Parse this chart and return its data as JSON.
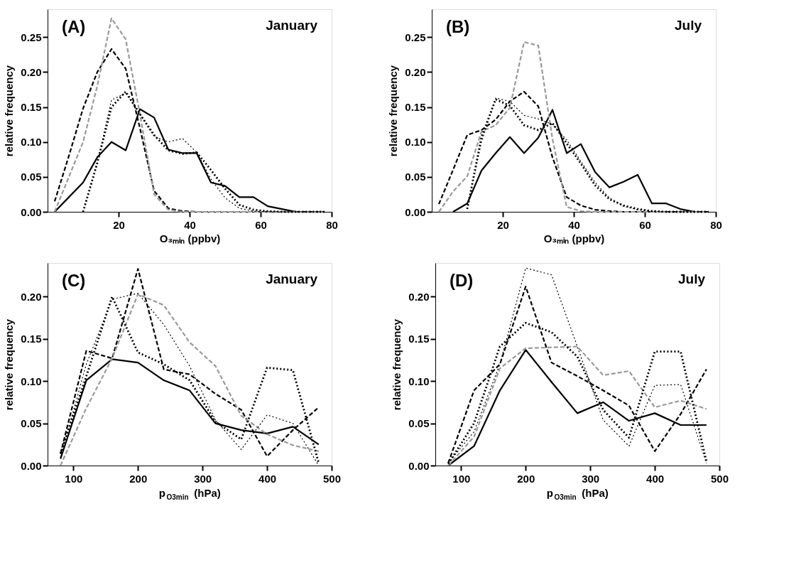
{
  "chart_data": [
    {
      "type": "line",
      "xlabel": "O₃ₘᵢₙ (ppbv)",
      "ylabel": "relative frequency",
      "annotations": [
        "(A)",
        "January"
      ],
      "x": [
        2,
        6,
        10,
        14,
        18,
        22,
        26,
        30,
        34,
        38,
        42,
        46,
        50,
        54,
        58,
        62,
        66,
        70,
        74,
        78
      ],
      "xlim": [
        0,
        80
      ],
      "xticks": [
        20,
        40,
        60,
        80
      ],
      "ylim": [
        0,
        0.29
      ],
      "yticks": [
        {
          "value": 0,
          "label": "0.00"
        },
        {
          "value": 0.05,
          "label": "0.05"
        },
        {
          "value": 0.1,
          "label": "0.10"
        },
        {
          "value": 0.15,
          "label": "0.15"
        },
        {
          "value": 0.2,
          "label": "0.20"
        },
        {
          "value": 0.25,
          "label": "0.25"
        }
      ],
      "grid": false,
      "marker": "none",
      "series": [
        {
          "color": "#000000",
          "line_style": "solid",
          "values": [
            0,
            0.021,
            0.042,
            0.078,
            0.1,
            0.088,
            0.147,
            0.135,
            0.089,
            0.084,
            0.084,
            0.042,
            0.037,
            0.021,
            0.021,
            0.008,
            0.004,
            0,
            0,
            0
          ]
        },
        {
          "color": "#000000",
          "line_style": "dashed",
          "values": [
            0.015,
            0.08,
            0.148,
            0.2,
            0.233,
            0.205,
            0.12,
            0.03,
            0.005,
            0.001,
            0,
            0,
            0,
            0,
            0,
            0,
            0,
            0,
            0,
            0
          ]
        },
        {
          "color": "#999999",
          "line_style": "dashed",
          "values": [
            0,
            0.05,
            0.1,
            0.18,
            0.277,
            0.247,
            0.14,
            0.025,
            0.003,
            0,
            0,
            0,
            0,
            0,
            0,
            0,
            0,
            0,
            0,
            0
          ]
        },
        {
          "color": "#000000",
          "line_style": "dotted",
          "values": [
            null,
            null,
            0,
            0.07,
            0.15,
            0.172,
            0.14,
            0.11,
            0.088,
            0.083,
            0.085,
            0.06,
            0.033,
            0.01,
            0.003,
            0.001,
            0,
            0,
            0,
            0
          ]
        },
        {
          "color": "#000000",
          "line_style": "dotted",
          "values": [
            null,
            null,
            0,
            0.07,
            0.16,
            0.17,
            0.14,
            0.108,
            0.1,
            0.105,
            0.085,
            0.047,
            0.02,
            0.005,
            0.001,
            0,
            0,
            0,
            0,
            0
          ]
        }
      ]
    },
    {
      "type": "line",
      "xlabel": "O₃ₘᵢₙ (ppbv)",
      "ylabel": "relative frequency",
      "annotations": [
        "(B)",
        "July"
      ],
      "x": [
        2,
        6,
        10,
        14,
        18,
        22,
        26,
        30,
        34,
        38,
        42,
        46,
        50,
        54,
        58,
        62,
        66,
        70,
        74,
        78
      ],
      "xlim": [
        0,
        80
      ],
      "xticks": [
        20,
        40,
        60,
        80
      ],
      "ylim": [
        0,
        0.29
      ],
      "yticks": [
        {
          "value": 0,
          "label": "0.00"
        },
        {
          "value": 0.05,
          "label": "0.05"
        },
        {
          "value": 0.1,
          "label": "0.10"
        },
        {
          "value": 0.15,
          "label": "0.15"
        },
        {
          "value": 0.2,
          "label": "0.20"
        },
        {
          "value": 0.25,
          "label": "0.25"
        }
      ],
      "grid": false,
      "marker": "none",
      "series": [
        {
          "color": "#000000",
          "line_style": "solid",
          "values": [
            null,
            0,
            0.012,
            0.059,
            0.084,
            0.107,
            0.084,
            0.106,
            0.146,
            0.084,
            0.097,
            0.057,
            0.035,
            0.043,
            0.053,
            0.012,
            0.012,
            0.004,
            0,
            0
          ]
        },
        {
          "color": "#000000",
          "line_style": "dashed",
          "values": [
            0.011,
            0.06,
            0.11,
            0.117,
            0.132,
            0.158,
            0.172,
            0.151,
            0.078,
            0.021,
            0.009,
            0.003,
            0.001,
            0,
            0,
            0,
            0,
            0,
            0,
            0
          ]
        },
        {
          "color": "#999999",
          "line_style": "dashed",
          "values": [
            0,
            0.029,
            0.051,
            0.115,
            0.124,
            0.149,
            0.243,
            0.238,
            0.104,
            0.007,
            0.001,
            0,
            0,
            0,
            0,
            0,
            0,
            0,
            0,
            0
          ]
        },
        {
          "color": "#000000",
          "line_style": "dotted",
          "values": [
            null,
            null,
            0.004,
            0.107,
            0.161,
            0.152,
            0.124,
            0.117,
            0.127,
            0.098,
            0.069,
            0.038,
            0.018,
            0.009,
            0.004,
            0.001,
            0,
            0,
            0,
            0
          ]
        },
        {
          "color": "#000000",
          "line_style": "dotted",
          "values": [
            null,
            null,
            0.004,
            0.1,
            0.163,
            0.158,
            0.138,
            0.133,
            0.125,
            0.103,
            0.072,
            0.042,
            0.02,
            0.008,
            0.003,
            0.001,
            0,
            0,
            0,
            0
          ]
        }
      ]
    },
    {
      "type": "line",
      "xlabel": "p$_{O3min}$ (hPa)",
      "ylabel": "relative frequency",
      "annotations": [
        "(C)",
        "January"
      ],
      "x": [
        80,
        120,
        160,
        200,
        240,
        280,
        320,
        360,
        400,
        440,
        480
      ],
      "xlim": [
        60,
        500
      ],
      "xticks": [
        100,
        200,
        300,
        400,
        500
      ],
      "ylim": [
        0,
        0.24
      ],
      "yticks": [
        {
          "value": 0,
          "label": "0.00"
        },
        {
          "value": 0.05,
          "label": "0.05"
        },
        {
          "value": 0.1,
          "label": "0.10"
        },
        {
          "value": 0.15,
          "label": "0.15"
        },
        {
          "value": 0.2,
          "label": "0.20"
        }
      ],
      "grid": false,
      "marker": "none",
      "series": [
        {
          "color": "#000000",
          "line_style": "solid",
          "values": [
            0.008,
            0.101,
            0.126,
            0.122,
            0.101,
            0.089,
            0.05,
            0.042,
            0.038,
            0.046,
            0.025
          ]
        },
        {
          "color": "#000000",
          "line_style": "dashed",
          "values": [
            0.014,
            0.136,
            0.127,
            0.233,
            0.114,
            0.108,
            0.085,
            0.066,
            0.011,
            0.042,
            0.069
          ]
        },
        {
          "color": "#999999",
          "line_style": "dashed",
          "values": [
            0,
            0.068,
            0.127,
            0.203,
            0.19,
            0.146,
            0.118,
            0.059,
            0.037,
            0.024,
            0.017
          ]
        },
        {
          "color": "#000000",
          "line_style": "dotted",
          "values": [
            0.014,
            0.106,
            0.2,
            0.134,
            0.12,
            0.101,
            0.052,
            0.031,
            0.116,
            0.113,
            0.003
          ]
        },
        {
          "color": "#000000",
          "line_style": "dotted",
          "values": [
            0.01,
            0.12,
            0.197,
            0.204,
            0.167,
            0.118,
            0.054,
            0.019,
            0.06,
            0.05,
            0
          ]
        }
      ]
    },
    {
      "type": "line",
      "xlabel": "p$_{O3min}$ (hPa)",
      "ylabel": "relative frequency",
      "annotations": [
        "(D)",
        "July"
      ],
      "x": [
        80,
        120,
        160,
        200,
        240,
        280,
        320,
        360,
        400,
        440,
        480
      ],
      "xlim": [
        60,
        500
      ],
      "xticks": [
        100,
        200,
        300,
        400,
        500
      ],
      "ylim": [
        0,
        0.24
      ],
      "yticks": [
        {
          "value": 0,
          "label": "0.00"
        },
        {
          "value": 0.05,
          "label": "0.05"
        },
        {
          "value": 0.1,
          "label": "0.10"
        },
        {
          "value": 0.15,
          "label": "0.15"
        },
        {
          "value": 0.2,
          "label": "0.20"
        }
      ],
      "grid": false,
      "marker": "none",
      "series": [
        {
          "color": "#000000",
          "line_style": "solid",
          "values": [
            0,
            0.023,
            0.089,
            0.137,
            0.099,
            0.062,
            0.075,
            0.053,
            0.062,
            0.048,
            0.048
          ]
        },
        {
          "color": "#000000",
          "line_style": "dashed",
          "values": [
            0.003,
            0.089,
            0.12,
            0.212,
            0.122,
            0.106,
            0.089,
            0.071,
            0.017,
            0.061,
            0.114
          ]
        },
        {
          "color": "#999999",
          "line_style": "dashed",
          "values": [
            0,
            0.034,
            0.115,
            0.139,
            0.14,
            0.141,
            0.107,
            0.112,
            0.069,
            0.077,
            0.067
          ]
        },
        {
          "color": "#000000",
          "line_style": "dotted",
          "values": [
            0.002,
            0.05,
            0.141,
            0.169,
            0.158,
            0.129,
            0.066,
            0.033,
            0.135,
            0.135,
            0.005
          ]
        },
        {
          "color": "#000000",
          "line_style": "dotted",
          "values": [
            0.003,
            0.04,
            0.12,
            0.234,
            0.226,
            0.141,
            0.054,
            0.023,
            0.095,
            0.096,
            0.003
          ]
        }
      ]
    }
  ]
}
